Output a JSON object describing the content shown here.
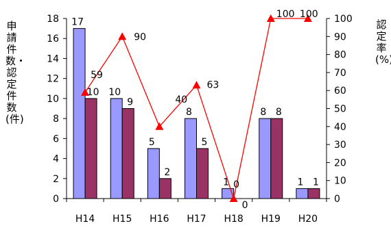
{
  "chart_data": {
    "type": "bar",
    "categories": [
      "H14",
      "H15",
      "H16",
      "H17",
      "H18",
      "H19",
      "H20"
    ],
    "series": [
      {
        "name": "",
        "kind": "bar",
        "axis": "left",
        "color": "#9999ff",
        "values": [
          17,
          10,
          5,
          8,
          1,
          8,
          1
        ],
        "labels": [
          "17",
          "10",
          "5",
          "8",
          "1",
          "8",
          "1"
        ]
      },
      {
        "name": "",
        "kind": "bar",
        "axis": "left",
        "color": "#993366",
        "values": [
          10,
          9,
          2,
          5,
          0,
          8,
          1
        ],
        "labels": [
          "10",
          "9",
          "2",
          "5",
          "0",
          "8",
          "1"
        ]
      },
      {
        "name": "",
        "kind": "line",
        "axis": "right",
        "color": "#ff0000",
        "marker": "triangle",
        "values": [
          59,
          90,
          40,
          63,
          0,
          100,
          100
        ],
        "labels": [
          "59",
          "90",
          "40",
          "63",
          "0",
          "100",
          "100"
        ]
      }
    ],
    "ylabel": "申請件数・認定件数(件)",
    "y2label": "認定率(%)",
    "ylim": [
      0,
      18
    ],
    "yticks": [
      "0",
      "2",
      "4",
      "6",
      "8",
      "10",
      "12",
      "14",
      "16",
      "18"
    ],
    "y2lim": [
      0,
      100
    ],
    "y2ticks": [
      "0",
      "10",
      "20",
      "30",
      "40",
      "50",
      "60",
      "70",
      "80",
      "90",
      "100"
    ],
    "grid": false,
    "legend": "none"
  }
}
